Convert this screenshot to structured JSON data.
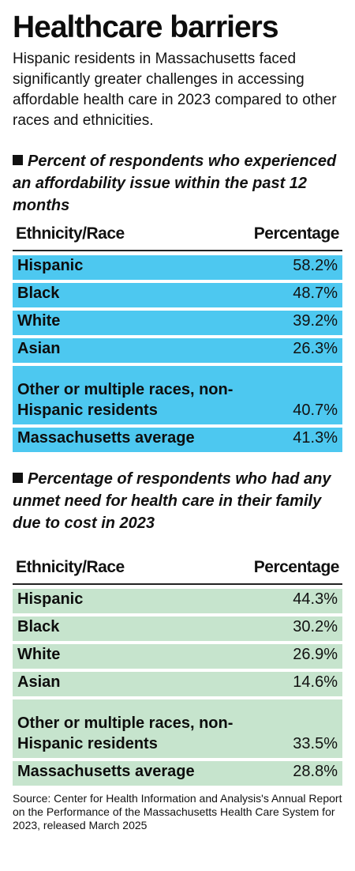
{
  "title": "Healthcare barriers",
  "subtitle": "Hispanic residents in Massachusetts faced significantly greater challenges in accessing affordable health care in 2023 compared to other races and ethnicities.",
  "source": "Source: Center for Health Information and Analysis's Annual Report on the Performance of the Massachusetts Health Care System for 2023, released March 2025",
  "colors": {
    "table1_row": "#4dc8f0",
    "table2_row": "#c6e4cd"
  },
  "chart_data": [
    {
      "type": "table",
      "title": "Percent of respondents who experienced an affordability issue within the past 12 months",
      "columns": [
        "Ethnicity/Race",
        "Percentage"
      ],
      "rows": [
        {
          "label": "Hispanic",
          "value": "58.2%"
        },
        {
          "label": "Black",
          "value": "48.7%"
        },
        {
          "label": "White",
          "value": "39.2%"
        },
        {
          "label": "Asian",
          "value": "26.3%"
        },
        {
          "label": "Other or multiple races, non-Hispanic residents",
          "value": "40.7%"
        },
        {
          "label": "Massachusetts average",
          "value": "41.3%"
        }
      ]
    },
    {
      "type": "table",
      "title": "Percentage of respondents who had any unmet need for health care in their family due to cost in 2023",
      "columns": [
        "Ethnicity/Race",
        "Percentage"
      ],
      "rows": [
        {
          "label": "Hispanic",
          "value": "44.3%"
        },
        {
          "label": "Black",
          "value": "30.2%"
        },
        {
          "label": "White",
          "value": "26.9%"
        },
        {
          "label": "Asian",
          "value": "14.6%"
        },
        {
          "label": "Other or multiple races, non-Hispanic residents",
          "value": "33.5%"
        },
        {
          "label": "Massachusetts average",
          "value": "28.8%"
        }
      ]
    }
  ]
}
